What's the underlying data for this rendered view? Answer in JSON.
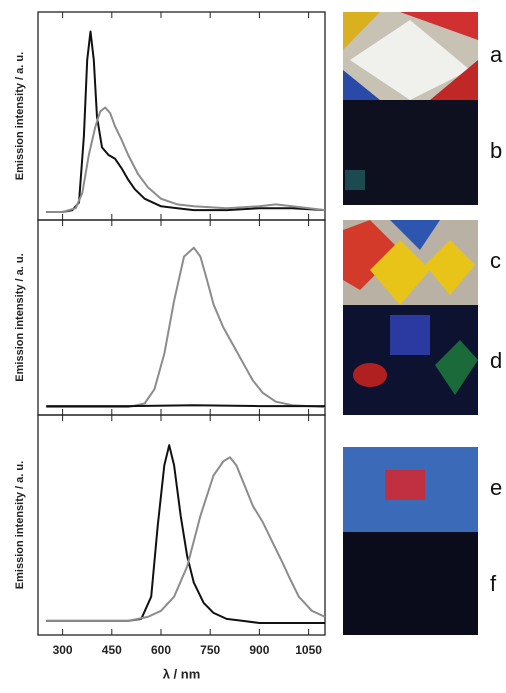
{
  "chart_data": [
    {
      "type": "line",
      "ylabel": "Emission intensity / a. u.",
      "xlim": [
        225,
        1100
      ],
      "ylim": [
        0,
        1
      ],
      "series": [
        {
          "color": "#111111",
          "x": [
            250,
            300,
            330,
            350,
            365,
            375,
            385,
            395,
            405,
            420,
            440,
            460,
            480,
            500,
            520,
            550,
            600,
            650,
            700,
            800,
            900,
            1000,
            1100
          ],
          "values": [
            0,
            0,
            0.01,
            0.05,
            0.4,
            0.8,
            0.95,
            0.8,
            0.5,
            0.34,
            0.3,
            0.28,
            0.23,
            0.17,
            0.12,
            0.07,
            0.03,
            0.02,
            0.01,
            0.01,
            0.02,
            0.02,
            0.01
          ]
        },
        {
          "color": "#8c8c8c",
          "x": [
            250,
            300,
            340,
            360,
            380,
            400,
            415,
            430,
            445,
            460,
            480,
            500,
            530,
            560,
            600,
            650,
            700,
            800,
            900,
            950,
            1000,
            1100
          ],
          "values": [
            0,
            0,
            0.02,
            0.1,
            0.3,
            0.45,
            0.53,
            0.55,
            0.52,
            0.45,
            0.38,
            0.3,
            0.2,
            0.13,
            0.07,
            0.04,
            0.03,
            0.02,
            0.03,
            0.04,
            0.03,
            0.01
          ]
        }
      ]
    },
    {
      "type": "line",
      "ylabel": "Emission intensity / a. u.",
      "xlim": [
        225,
        1100
      ],
      "ylim": [
        0,
        1
      ],
      "series": [
        {
          "color": "#8c8c8c",
          "x": [
            250,
            500,
            550,
            580,
            610,
            640,
            670,
            700,
            720,
            740,
            760,
            790,
            820,
            850,
            880,
            910,
            950,
            1000,
            1100
          ],
          "values": [
            0,
            0,
            0.02,
            0.1,
            0.3,
            0.6,
            0.85,
            0.9,
            0.85,
            0.72,
            0.58,
            0.45,
            0.35,
            0.25,
            0.15,
            0.08,
            0.03,
            0.01,
            0
          ]
        },
        {
          "color": "#111111",
          "x": [
            250,
            500,
            700,
            900,
            1100
          ],
          "values": [
            0.005,
            0.005,
            0.01,
            0.005,
            0.005
          ]
        }
      ]
    },
    {
      "type": "line",
      "ylabel": "Emission intensity / a. u.",
      "xlabel": "λ / nm",
      "xlim": [
        225,
        1100
      ],
      "ylim": [
        0,
        1
      ],
      "xticks": [
        300,
        450,
        600,
        750,
        900,
        1050
      ],
      "series": [
        {
          "color": "#111111",
          "x": [
            250,
            500,
            540,
            570,
            590,
            610,
            625,
            640,
            660,
            680,
            700,
            730,
            760,
            800,
            850,
            900,
            1000,
            1100
          ],
          "values": [
            0.03,
            0.03,
            0.04,
            0.15,
            0.5,
            0.8,
            0.9,
            0.8,
            0.55,
            0.35,
            0.22,
            0.12,
            0.07,
            0.04,
            0.03,
            0.02,
            0.02,
            0.02
          ]
        },
        {
          "color": "#8c8c8c",
          "x": [
            250,
            500,
            560,
            600,
            640,
            680,
            720,
            760,
            790,
            810,
            830,
            860,
            880,
            910,
            940,
            970,
            990,
            1020,
            1060,
            1100
          ],
          "values": [
            0.03,
            0.03,
            0.05,
            0.08,
            0.15,
            0.3,
            0.55,
            0.75,
            0.82,
            0.84,
            0.8,
            0.68,
            0.6,
            0.52,
            0.42,
            0.32,
            0.25,
            0.15,
            0.08,
            0.05
          ]
        }
      ]
    }
  ],
  "photos": [
    "a",
    "b",
    "c",
    "d",
    "e",
    "f"
  ]
}
